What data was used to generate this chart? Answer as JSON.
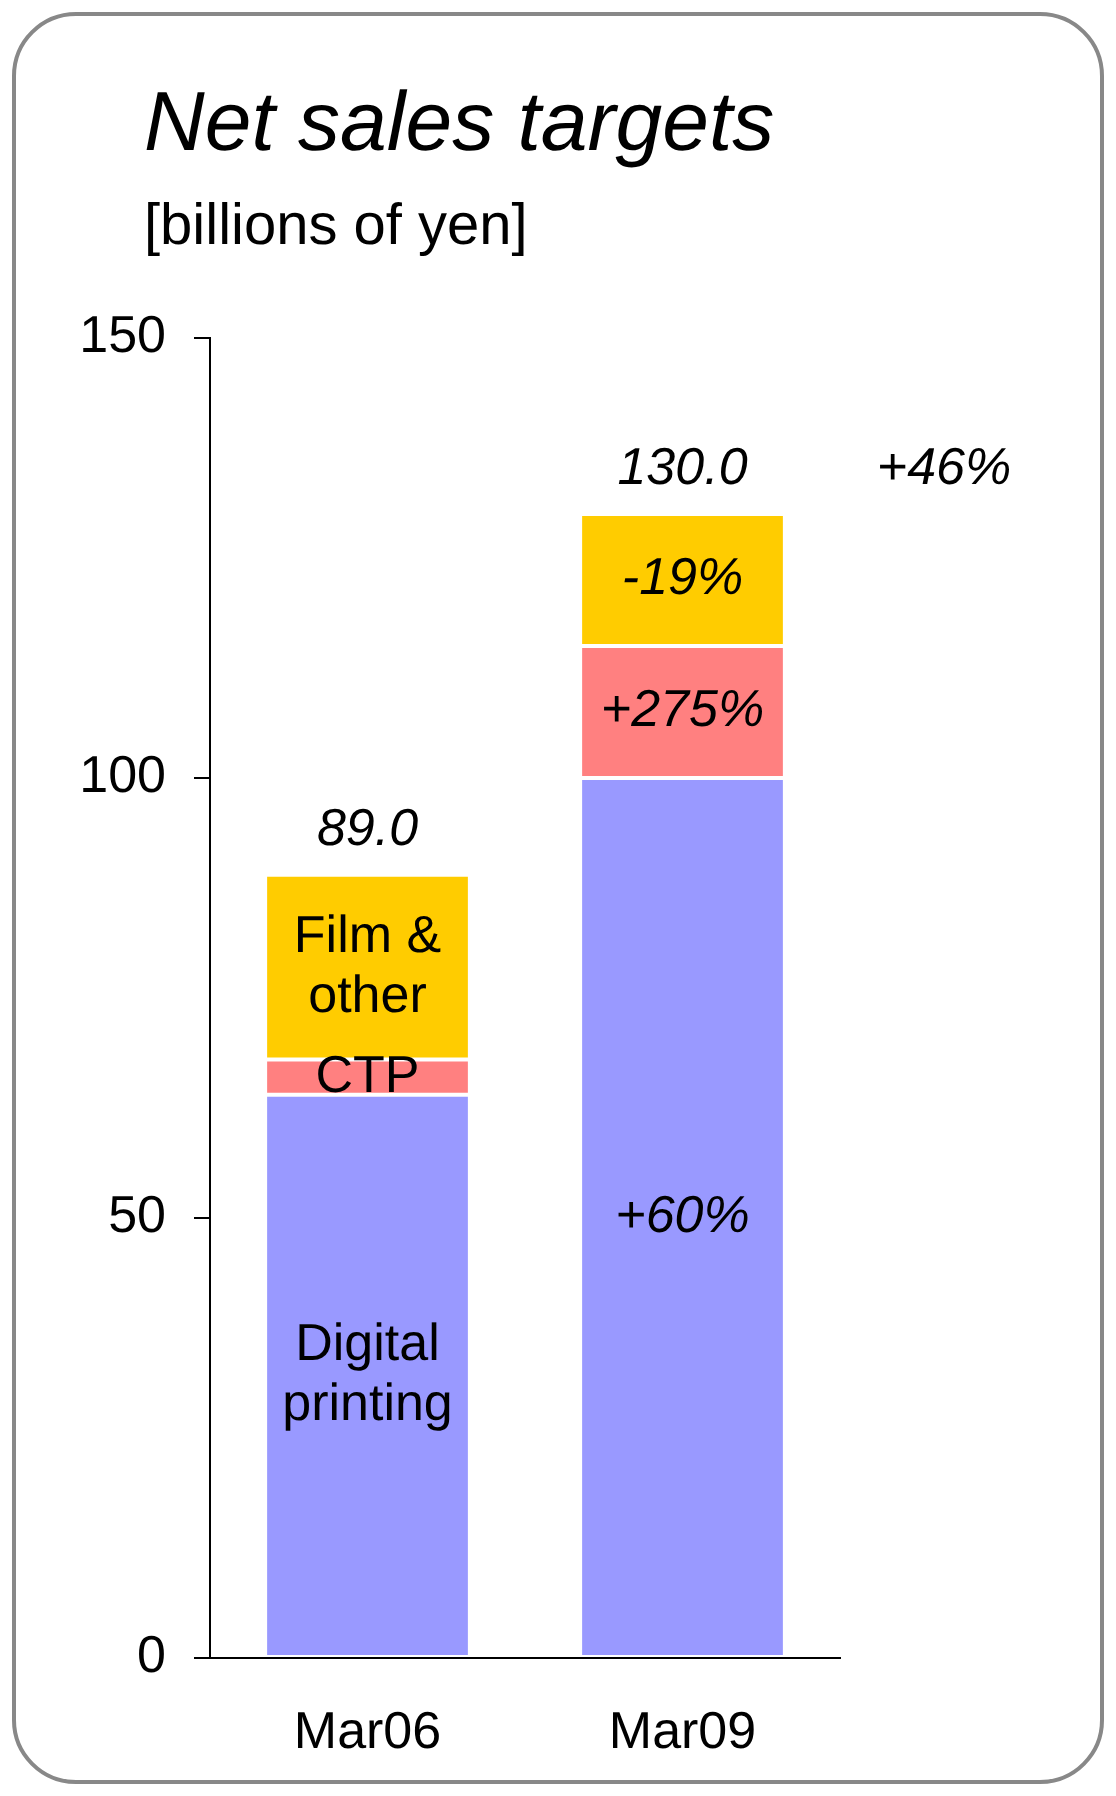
{
  "chart_data": {
    "type": "bar",
    "title": "Net sales targets",
    "subtitle": "[billions of yen]",
    "categories": [
      "Mar06",
      "Mar09"
    ],
    "stacked": true,
    "legend": false,
    "grid": false,
    "ylim": [
      0,
      150
    ],
    "yticks": [
      0,
      50,
      100,
      150
    ],
    "series": [
      {
        "name": "Digital printing",
        "color": "#9999ff",
        "values": [
          64,
          100
        ]
      },
      {
        "name": "CTP",
        "color": "#ff8080",
        "values": [
          4,
          15
        ]
      },
      {
        "name": "Film & other",
        "color": "#ffcc00",
        "values": [
          21,
          15
        ]
      }
    ],
    "totals": [
      "89.0",
      "130.0"
    ],
    "annotations": [
      "+60%",
      "+275%",
      "-19%",
      "+46%"
    ]
  }
}
